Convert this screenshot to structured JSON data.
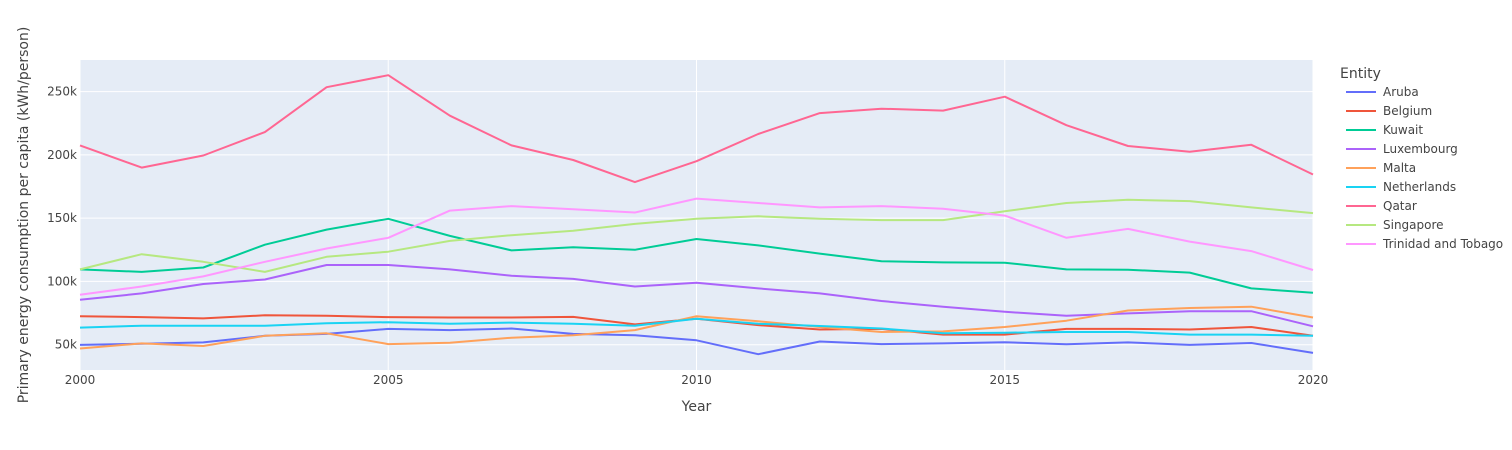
{
  "chart_data": {
    "type": "line",
    "xlabel": "Year",
    "ylabel": "Primary energy consumption per capita (kWh/person)",
    "xlim": [
      2000,
      2020
    ],
    "ylim": [
      30000,
      275000
    ],
    "x_ticks": [
      2000,
      2005,
      2010,
      2015,
      2020
    ],
    "y_ticks": [
      50000,
      100000,
      150000,
      200000,
      250000
    ],
    "y_tick_labels": [
      "50k",
      "100k",
      "150k",
      "200k",
      "250k"
    ],
    "legend_title": "Entity",
    "legend_position": "right",
    "grid": true,
    "background": "#e5ecf6",
    "x": [
      2000,
      2001,
      2002,
      2003,
      2004,
      2005,
      2006,
      2007,
      2008,
      2009,
      2010,
      2011,
      2012,
      2013,
      2014,
      2015,
      2016,
      2017,
      2018,
      2019,
      2020
    ],
    "series": [
      {
        "name": "Aruba",
        "color": "#636efa",
        "values": [
          49800,
          50800,
          51800,
          57000,
          58500,
          62500,
          61500,
          62800,
          58500,
          57500,
          53500,
          42500,
          52500,
          50500,
          51000,
          52000,
          50300,
          51800,
          49800,
          51300,
          43500
        ]
      },
      {
        "name": "Belgium",
        "color": "#ef553b",
        "values": [
          72500,
          71800,
          70800,
          73200,
          72800,
          71800,
          71500,
          71500,
          72000,
          66000,
          70500,
          65500,
          62000,
          62500,
          58000,
          58000,
          62500,
          62500,
          62000,
          64000,
          57000
        ]
      },
      {
        "name": "Kuwait",
        "color": "#00cc96",
        "values": [
          109500,
          107500,
          111000,
          129000,
          141000,
          149500,
          136000,
          124500,
          127000,
          125000,
          133500,
          128500,
          122000,
          116000,
          115000,
          114800,
          109500,
          109300,
          107000,
          94500,
          91000
        ]
      },
      {
        "name": "Luxembourg",
        "color": "#ab63fa",
        "values": [
          85500,
          90500,
          98000,
          101500,
          113000,
          113000,
          109500,
          104500,
          102000,
          96000,
          99000,
          94500,
          90500,
          84500,
          80000,
          76000,
          72800,
          74700,
          76500,
          76500,
          64500
        ]
      },
      {
        "name": "Malta",
        "color": "#ffa15a",
        "values": [
          47000,
          51000,
          49000,
          57000,
          59000,
          50500,
          51500,
          55500,
          57500,
          61500,
          72500,
          68500,
          64000,
          60000,
          60500,
          64000,
          69000,
          77000,
          79000,
          80000,
          71500
        ]
      },
      {
        "name": "Netherlands",
        "color": "#19d3f3",
        "values": [
          63500,
          65000,
          65000,
          65000,
          67000,
          67800,
          66500,
          67500,
          66500,
          65000,
          70500,
          66500,
          64800,
          62800,
          59000,
          59500,
          60000,
          60000,
          58000,
          58000,
          57000
        ]
      },
      {
        "name": "Qatar",
        "color": "#ff6692",
        "values": [
          207500,
          190000,
          199500,
          218000,
          253500,
          263000,
          231000,
          207500,
          196000,
          178500,
          195000,
          216500,
          233000,
          236500,
          235000,
          246000,
          223500,
          207000,
          202500,
          208000,
          184500
        ]
      },
      {
        "name": "Singapore",
        "color": "#b6e880",
        "values": [
          109500,
          121500,
          115500,
          107500,
          119500,
          123500,
          132000,
          136500,
          140000,
          145500,
          149500,
          151500,
          149500,
          148500,
          148500,
          155500,
          162000,
          164500,
          163500,
          158500,
          154000
        ]
      },
      {
        "name": "Trinidad and Tobago",
        "color": "#ff97ff",
        "values": [
          89500,
          96000,
          104000,
          115500,
          126000,
          134500,
          156000,
          159500,
          157000,
          154500,
          165500,
          162000,
          158500,
          159500,
          157500,
          152000,
          134500,
          141500,
          131500,
          124000,
          109000
        ]
      }
    ]
  }
}
